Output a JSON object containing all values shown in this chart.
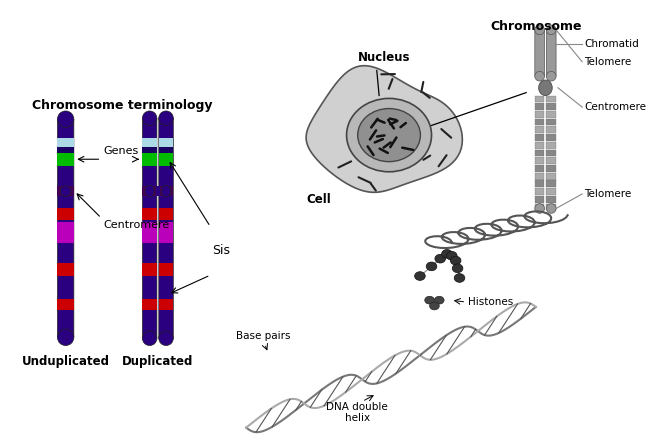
{
  "bg_color": "#ffffff",
  "chromosome_terminology_label": "Chromosome terminology",
  "unduplicated_label": "Unduplicated",
  "duplicated_label": "Duplicated",
  "sis_label": "Sis",
  "genes_label": "Genes",
  "centromere_label": "Centromere",
  "nucleus_label": "Nucleus",
  "cell_label": "Cell",
  "chromosome_title": "Chromosome",
  "chromatid_label": "Chromatid",
  "telomere_top_label": "Telomere",
  "centromere2_label": "Centromere",
  "telomere_bot_label": "Telomere",
  "histones_label": "Histones",
  "base_pairs_label": "Base pairs",
  "dna_label": "DNA double\nhelix",
  "chrom_purple": "#2a0080",
  "chrom_lightblue": "#add8e6",
  "chrom_darkblue": "#1a0060",
  "chrom_green": "#00bb00",
  "chrom_red": "#cc0000",
  "chrom_magenta": "#bb00bb",
  "chrom_gray": "#888888",
  "cell_color": "#c8c8c8",
  "nuc_color": "#a0a0a0",
  "nuc_inner_color": "#787878"
}
